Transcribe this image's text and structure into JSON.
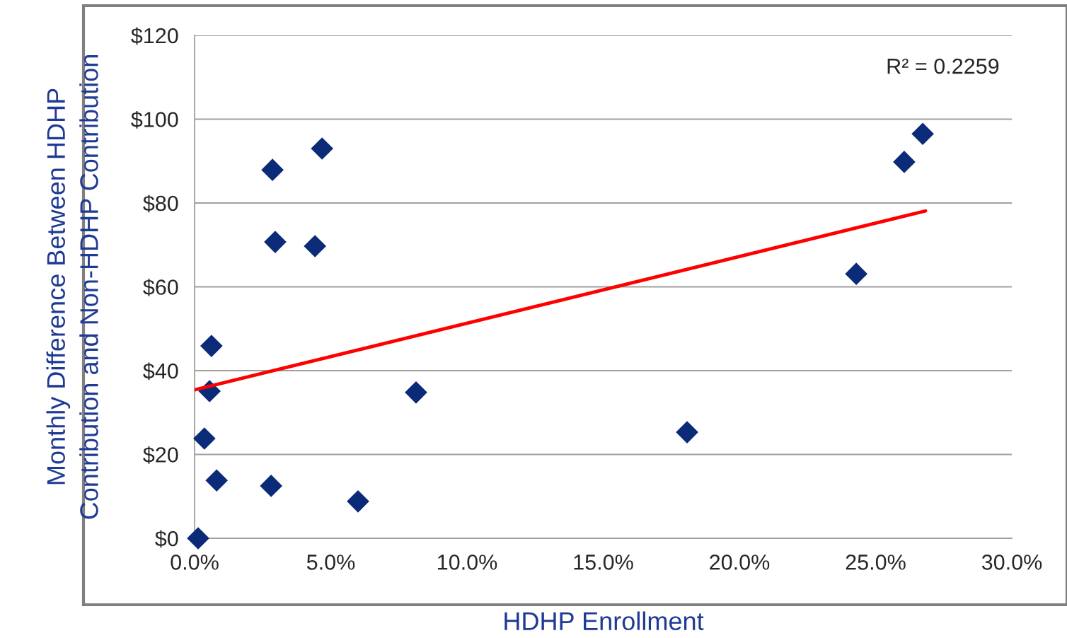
{
  "chart_data": {
    "type": "scatter",
    "xlabel": "HDHP Enrollment",
    "ylabel": "Monthly Difference Between HDHP\nContribution and Non-HDHP Contribution",
    "annotations": [
      "R² = 0.2259"
    ],
    "series": [
      {
        "color": "#0b2a78",
        "marker": "diamond",
        "x": [
          0.13,
          0.36,
          0.55,
          0.62,
          0.81,
          2.81,
          2.86,
          2.96,
          4.42,
          4.68,
          6.0,
          8.13,
          18.08,
          24.29,
          26.05,
          26.73
        ],
        "values": [
          0,
          23.8,
          35.1,
          45.9,
          13.8,
          12.5,
          87.9,
          70.7,
          69.7,
          93.0,
          8.8,
          34.8,
          25.3,
          63.1,
          89.8,
          96.5
        ]
      },
      {
        "type": "line",
        "color": "#ff0000",
        "marker": "none",
        "x": [
          0,
          26.83
        ],
        "values": [
          35.4,
          78.1
        ]
      }
    ],
    "xlim": [
      0,
      30
    ],
    "xticks": [
      {
        "value": 0,
        "label": "0.0%"
      },
      {
        "value": 5,
        "label": "5.0%"
      },
      {
        "value": 10,
        "label": "10.0%"
      },
      {
        "value": 15,
        "label": "15.0%"
      },
      {
        "value": 20,
        "label": "20.0%"
      },
      {
        "value": 25,
        "label": "25.0%"
      },
      {
        "value": 30,
        "label": "30.0%"
      }
    ],
    "ylim": [
      0,
      120
    ],
    "yticks": [
      {
        "value": 0,
        "label": "$0"
      },
      {
        "value": 20,
        "label": "$20"
      },
      {
        "value": 40,
        "label": "$40"
      },
      {
        "value": 60,
        "label": "$60"
      },
      {
        "value": 80,
        "label": "$80"
      },
      {
        "value": 100,
        "label": "$100"
      },
      {
        "value": 120,
        "label": "$120"
      }
    ],
    "grid": "y",
    "legend": false
  }
}
